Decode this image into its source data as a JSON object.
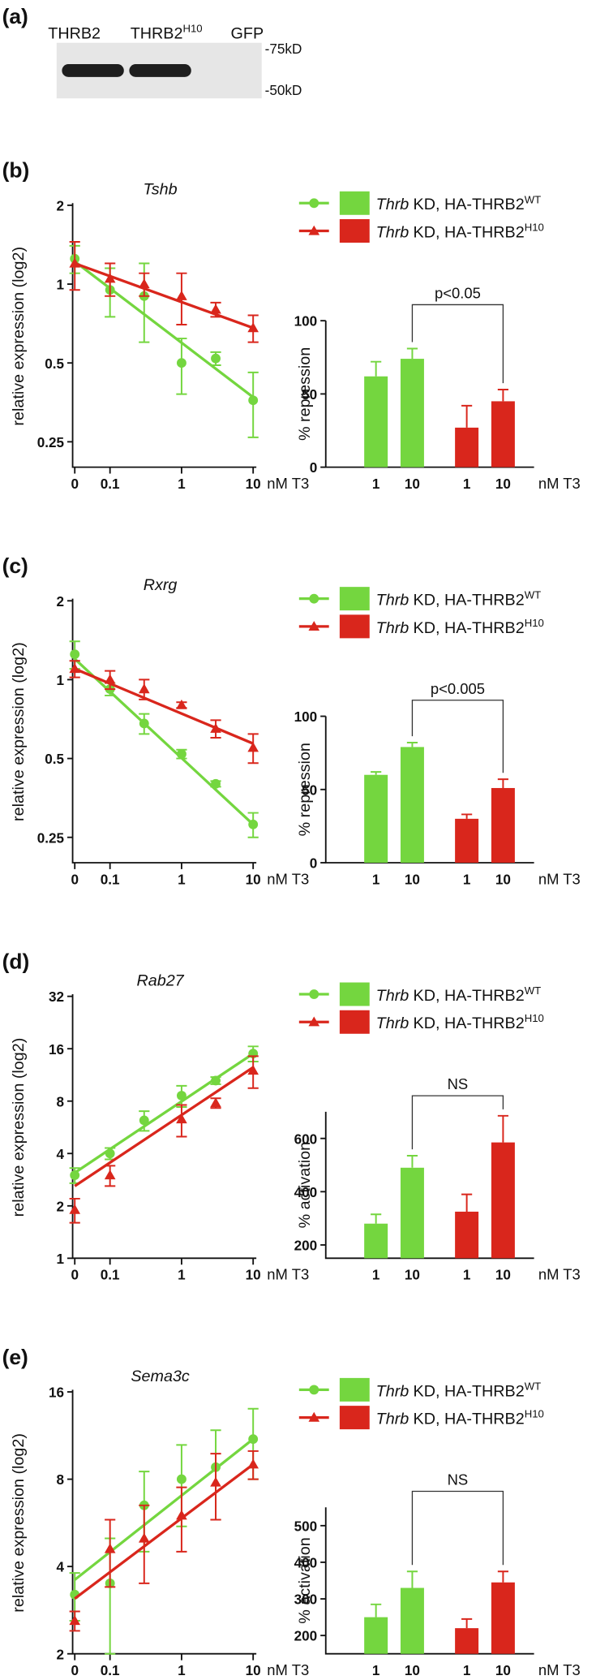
{
  "panel_a": {
    "label": "(a)",
    "lanes": [
      {
        "text": "THRB2"
      },
      {
        "text": "THRB2",
        "sup": "H10"
      },
      {
        "text": "GFP"
      }
    ],
    "markers": [
      "-75kD",
      "-50kD"
    ]
  },
  "chart_data": [
    {
      "type": "line",
      "panel_label": "(b)",
      "title": "Tshb",
      "y_label": "relative expression (log2)",
      "x_unit": "nM T3",
      "x": [
        0,
        0.1,
        0.3,
        1,
        3,
        10
      ],
      "xlim": [
        0,
        10
      ],
      "xticks": [
        0,
        0.1,
        1,
        10
      ],
      "log_x": true,
      "ylim": [
        0.2,
        2
      ],
      "yticks": [
        0.25,
        0.5,
        1,
        2
      ],
      "log_y": true,
      "fit_x": [
        0,
        10
      ],
      "bar_y_label": "% repression",
      "bar_categories": [
        "1",
        "10"
      ],
      "bar_ylim": [
        0,
        100
      ],
      "bar_yticks": [
        0,
        50,
        100
      ],
      "annotation": "p<0.05",
      "series": [
        {
          "name_prefix": "Thrb",
          "name": "KD, HA-THRB2",
          "name_sup": "WT",
          "color": "#74d63f",
          "marker": "circle",
          "values": [
            1.25,
            0.95,
            0.9,
            0.5,
            0.52,
            0.36
          ],
          "errors": [
            0.15,
            0.2,
            0.3,
            0.12,
            0.03,
            0.1
          ],
          "fit": [
            1.22,
            0.37
          ],
          "bar_values": [
            62,
            74
          ],
          "bar_errors": [
            10,
            7
          ]
        },
        {
          "name_prefix": "Thrb",
          "name": "KD, HA-THRB2",
          "name_sup": "H10",
          "color": "#d9261c",
          "marker": "triangle",
          "values": [
            1.2,
            1.05,
            1.0,
            0.9,
            0.8,
            0.68
          ],
          "errors": [
            0.25,
            0.15,
            0.1,
            0.2,
            0.05,
            0.08
          ],
          "fit": [
            1.2,
            0.68
          ],
          "bar_values": [
            27,
            45
          ],
          "bar_errors": [
            15,
            8
          ]
        }
      ]
    },
    {
      "type": "line",
      "panel_label": "(c)",
      "title": "Rxrg",
      "y_label": "relative expression (log2)",
      "x_unit": "nM T3",
      "x": [
        0,
        0.1,
        0.3,
        1,
        3,
        10
      ],
      "xlim": [
        0,
        10
      ],
      "xticks": [
        0,
        0.1,
        1,
        10
      ],
      "log_x": true,
      "ylim": [
        0.2,
        2
      ],
      "yticks": [
        0.25,
        0.5,
        1,
        2
      ],
      "log_y": true,
      "fit_x": [
        0,
        10
      ],
      "bar_y_label": "% repression",
      "bar_categories": [
        "1",
        "10"
      ],
      "bar_ylim": [
        0,
        100
      ],
      "bar_yticks": [
        0,
        50,
        100
      ],
      "annotation": "p<0.005",
      "series": [
        {
          "name_prefix": "Thrb",
          "name": "KD, HA-THRB2",
          "name_sup": "WT",
          "color": "#74d63f",
          "marker": "circle",
          "values": [
            1.25,
            0.92,
            0.68,
            0.52,
            0.4,
            0.28
          ],
          "errors": [
            0.15,
            0.05,
            0.06,
            0.02,
            0.01,
            0.03
          ],
          "fit": [
            1.2,
            0.28
          ],
          "bar_values": [
            60,
            79
          ],
          "bar_errors": [
            2,
            3
          ]
        },
        {
          "name_prefix": "Thrb",
          "name": "KD, HA-THRB2",
          "name_sup": "H10",
          "color": "#d9261c",
          "marker": "triangle",
          "values": [
            1.1,
            1.0,
            0.92,
            0.8,
            0.65,
            0.55
          ],
          "errors": [
            0.08,
            0.08,
            0.08,
            0.02,
            0.05,
            0.07
          ],
          "fit": [
            1.1,
            0.57
          ],
          "bar_values": [
            30,
            51
          ],
          "bar_errors": [
            3,
            6
          ]
        }
      ]
    },
    {
      "type": "line",
      "panel_label": "(d)",
      "title": "Rab27",
      "y_label": "relative expression (log2)",
      "x_unit": "nM T3",
      "x": [
        0,
        0.1,
        0.3,
        1,
        3,
        10
      ],
      "xlim": [
        0,
        10
      ],
      "xticks": [
        0,
        0.1,
        1,
        10
      ],
      "log_x": true,
      "ylim": [
        1,
        32
      ],
      "yticks": [
        1,
        2,
        4,
        8,
        16,
        32
      ],
      "log_y": true,
      "fit_x": [
        0,
        10
      ],
      "bar_y_label": "% activation",
      "bar_categories": [
        "1",
        "10"
      ],
      "bar_ylim": [
        150,
        700
      ],
      "bar_yticks": [
        200,
        400,
        600
      ],
      "annotation": "NS",
      "series": [
        {
          "name_prefix": "Thrb",
          "name": "KD, HA-THRB2",
          "name_sup": "WT",
          "color": "#74d63f",
          "marker": "circle",
          "values": [
            3.0,
            4.0,
            6.2,
            8.6,
            10.5,
            15
          ],
          "errors": [
            0.3,
            0.3,
            0.8,
            1.2,
            0.5,
            1.5
          ],
          "fit": [
            3.1,
            15
          ],
          "bar_values": [
            280,
            490
          ],
          "bar_errors": [
            35,
            45
          ]
        },
        {
          "name_prefix": "Thrb",
          "name": "KD, HA-THRB2",
          "name_sup": "H10",
          "color": "#d9261c",
          "marker": "triangle",
          "values": [
            1.9,
            3.0,
            null,
            6.3,
            7.8,
            12
          ],
          "errors": [
            0.3,
            0.4,
            null,
            1.3,
            0.5,
            2.5
          ],
          "fit": [
            2.6,
            12.5
          ],
          "bar_values": [
            325,
            585
          ],
          "bar_errors": [
            65,
            100
          ]
        }
      ]
    },
    {
      "type": "line",
      "panel_label": "(e)",
      "title": "Sema3c",
      "y_label": "relative expression (log2)",
      "x_unit": "nM T3",
      "x": [
        0,
        0.1,
        0.3,
        1,
        3,
        10
      ],
      "xlim": [
        0,
        10
      ],
      "xticks": [
        0,
        0.1,
        1,
        10
      ],
      "log_x": true,
      "ylim": [
        2,
        16
      ],
      "yticks": [
        2,
        4,
        8,
        16
      ],
      "log_y": true,
      "fit_x": [
        0,
        10
      ],
      "bar_y_label": "% activation",
      "bar_categories": [
        "1",
        "10"
      ],
      "bar_ylim": [
        150,
        550
      ],
      "bar_yticks": [
        200,
        300,
        400,
        500
      ],
      "annotation": "NS",
      "series": [
        {
          "name_prefix": "Thrb",
          "name": "KD, HA-THRB2",
          "name_sup": "WT",
          "color": "#74d63f",
          "marker": "circle",
          "values": [
            3.2,
            3.5,
            6.5,
            8,
            8.8,
            11
          ],
          "errors": [
            0.6,
            1.5,
            2,
            2.5,
            3,
            3
          ],
          "fit": [
            3.6,
            11
          ],
          "bar_values": [
            250,
            330
          ],
          "bar_errors": [
            35,
            45
          ]
        },
        {
          "name_prefix": "Thrb",
          "name": "KD, HA-THRB2",
          "name_sup": "H10",
          "color": "#d9261c",
          "marker": "triangle",
          "values": [
            2.6,
            4.6,
            5,
            6,
            7.8,
            9
          ],
          "errors": [
            0.2,
            1.2,
            1.5,
            1.5,
            2,
            1
          ],
          "fit": [
            3.1,
            9
          ],
          "bar_values": [
            220,
            345
          ],
          "bar_errors": [
            25,
            30
          ]
        }
      ]
    }
  ]
}
